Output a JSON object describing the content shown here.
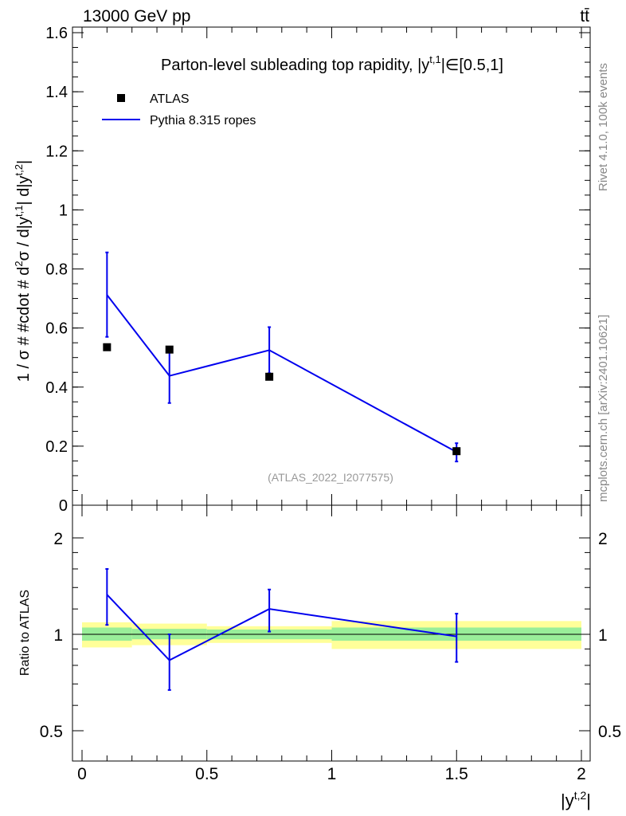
{
  "header": {
    "energy": "13000 GeV pp",
    "process": "tt̄"
  },
  "side_labels": {
    "rivet": "Rivet 4.1.0,  100k events",
    "mcplots": "mcplots.cern.ch [arXiv:2401.10621]"
  },
  "chart_data": [
    {
      "type": "line",
      "panel": "main",
      "title": "Parton-level subleading top rapidity, |y",
      "title_sup": "t,1",
      "title_tail": "|∈[0.5,1]",
      "analysis_tag": "(ATLAS_2022_I2077575)",
      "ylabel": "1 / σ # #cdot # d²σ / d|y^t,1| d|y^t,2|",
      "xlabel": "|y^t,2|",
      "xlim": [
        0,
        2
      ],
      "ylim": [
        0,
        1.6
      ],
      "xticks": [
        0,
        0.5,
        1,
        1.5,
        2
      ],
      "xtick_labels": [
        "0",
        "0.5",
        "1",
        "1.5",
        "2"
      ],
      "yticks": [
        0,
        0.2,
        0.4,
        0.6,
        0.8,
        1,
        1.2,
        1.4,
        1.6
      ],
      "ytick_labels": [
        "0",
        "0.2",
        "0.4",
        "0.6",
        "0.8",
        "1",
        "1.2",
        "1.4",
        "1.6"
      ],
      "legend": [
        {
          "label": "ATLAS",
          "marker": "square",
          "color": "#000000"
        },
        {
          "label": "Pythia 8.315 ropes",
          "marker": "line",
          "color": "#0000ee"
        }
      ],
      "series": [
        {
          "name": "ATLAS",
          "style": "markers",
          "color": "#000000",
          "x": [
            0.1,
            0.35,
            0.75,
            1.5
          ],
          "y": [
            0.535,
            0.527,
            0.435,
            0.183
          ]
        },
        {
          "name": "Pythia 8.315 ropes",
          "style": "line",
          "color": "#0000ee",
          "x": [
            0.1,
            0.35,
            0.75,
            1.5
          ],
          "y": [
            0.712,
            0.438,
            0.525,
            0.18
          ],
          "yerr_low": [
            0.57,
            0.346,
            0.447,
            0.148
          ],
          "yerr_high": [
            0.856,
            0.53,
            0.603,
            0.21
          ]
        }
      ]
    },
    {
      "type": "line",
      "panel": "ratio",
      "ylabel": "Ratio to ATLAS",
      "ylim": [
        0.4,
        2.3
      ],
      "yscale": "log",
      "yticks": [
        0.5,
        1,
        2
      ],
      "ytick_labels": [
        "0.5",
        "1",
        "2"
      ],
      "bins": [
        {
          "xlo": 0.0,
          "xhi": 0.2,
          "stat_lo": 0.955,
          "stat_hi": 1.05,
          "tot_lo": 0.91,
          "tot_hi": 1.09
        },
        {
          "xlo": 0.2,
          "xhi": 0.5,
          "stat_lo": 0.965,
          "stat_hi": 1.04,
          "tot_lo": 0.925,
          "tot_hi": 1.08
        },
        {
          "xlo": 0.5,
          "xhi": 1.0,
          "stat_lo": 0.965,
          "stat_hi": 1.035,
          "tot_lo": 0.94,
          "tot_hi": 1.06
        },
        {
          "xlo": 1.0,
          "xhi": 2.0,
          "stat_lo": 0.955,
          "stat_hi": 1.05,
          "tot_lo": 0.9,
          "tot_hi": 1.1
        }
      ],
      "series": [
        {
          "name": "Pythia 8.315 ropes",
          "color": "#0000ee",
          "x": [
            0.1,
            0.35,
            0.75,
            1.5
          ],
          "y": [
            1.33,
            0.83,
            1.2,
            0.985
          ],
          "yerr_low": [
            1.07,
            0.67,
            1.02,
            0.82
          ],
          "yerr_high": [
            1.6,
            1.0,
            1.38,
            1.16
          ]
        }
      ]
    }
  ]
}
